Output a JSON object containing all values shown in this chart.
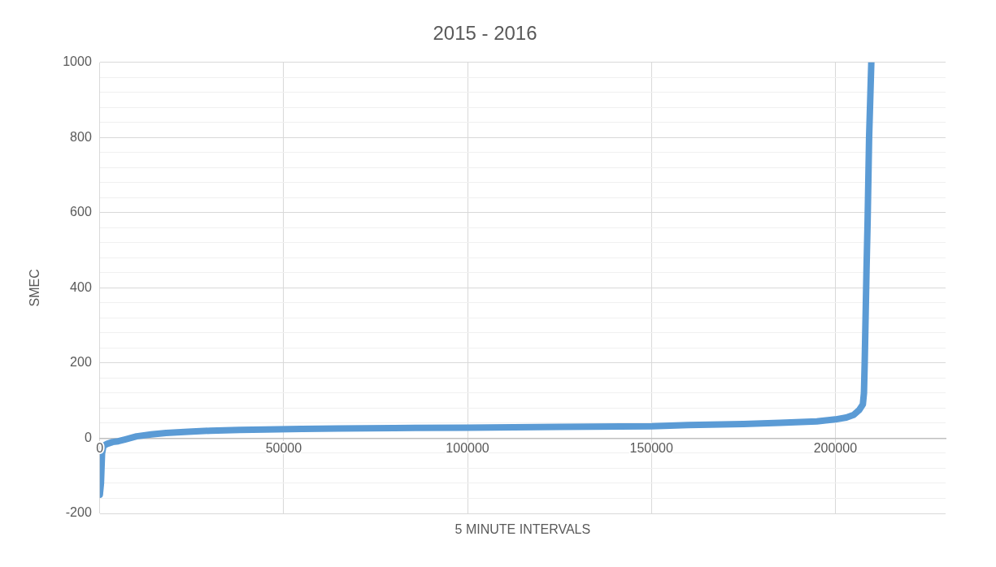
{
  "chart_data": {
    "type": "line",
    "title": "2015 - 2016",
    "xlabel": "5 MINUTE INTERVALS",
    "ylabel": "SMEC",
    "marker": "none",
    "grid": true,
    "legend": false,
    "xlim": [
      0,
      230000
    ],
    "xticks": [
      0,
      50000,
      100000,
      150000,
      200000
    ],
    "ylim": [
      -200,
      1000
    ],
    "yticks": [
      -200,
      {
        "value": -160,
        "label": null
      },
      {
        "value": -120,
        "label": null
      },
      {
        "value": -80,
        "label": null
      },
      {
        "value": -40,
        "label": null
      },
      0,
      {
        "value": 40,
        "label": null
      },
      {
        "value": 80,
        "label": null
      },
      {
        "value": 120,
        "label": null
      },
      {
        "value": 160,
        "label": null
      },
      200,
      {
        "value": 240,
        "label": null
      },
      {
        "value": 280,
        "label": null
      },
      {
        "value": 320,
        "label": null
      },
      {
        "value": 360,
        "label": null
      },
      400,
      {
        "value": 440,
        "label": null
      },
      {
        "value": 480,
        "label": null
      },
      {
        "value": 520,
        "label": null
      },
      {
        "value": 560,
        "label": null
      },
      600,
      {
        "value": 640,
        "label": null
      },
      {
        "value": 680,
        "label": null
      },
      {
        "value": 720,
        "label": null
      },
      {
        "value": 760,
        "label": null
      },
      800,
      {
        "value": 840,
        "label": null
      },
      {
        "value": 880,
        "label": null
      },
      {
        "value": 920,
        "label": null
      },
      {
        "value": 960,
        "label": null
      },
      1000
    ],
    "series": [
      {
        "color": "#5b9bd5",
        "x": [
          0,
          300,
          600,
          1000,
          2000,
          3500,
          5000,
          7000,
          10000,
          14000,
          18000,
          24000,
          30000,
          38000,
          45000,
          55000,
          65000,
          80000,
          100000,
          125000,
          150000,
          160000,
          175000,
          185000,
          195000,
          200000,
          203000,
          205000,
          206500,
          207500,
          207800,
          208000,
          208200,
          208500,
          208800,
          209200,
          209800
        ],
        "values": [
          -150,
          -120,
          -40,
          -20,
          -15,
          -10,
          -8,
          -3,
          5,
          10,
          14,
          17,
          20,
          22,
          23,
          25,
          26,
          27,
          28,
          30,
          32,
          35,
          38,
          41,
          45,
          50,
          55,
          62,
          75,
          90,
          120,
          200,
          300,
          450,
          580,
          800,
          1000
        ]
      }
    ]
  }
}
